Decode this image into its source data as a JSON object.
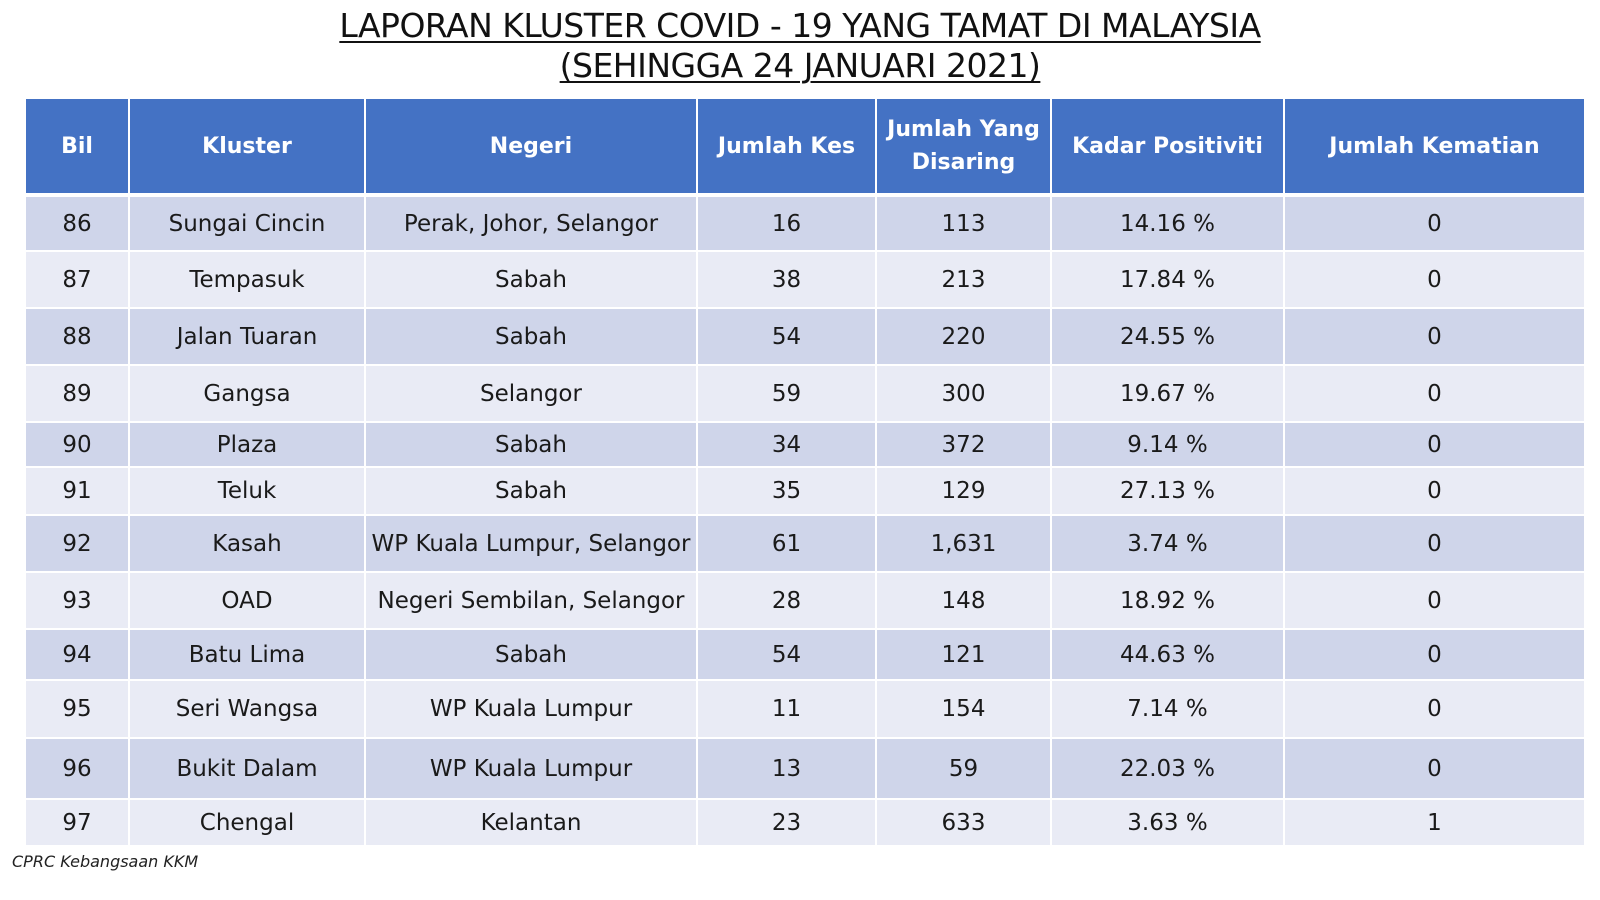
{
  "title": {
    "line1": "LAPORAN KLUSTER COVID - 19 YANG TAMAT DI MALAYSIA",
    "line2": "(SEHINGGA 24 JANUARI 2021)"
  },
  "table": {
    "headers": {
      "bil": "Bil",
      "kluster": "Kluster",
      "negeri": "Negeri",
      "jumlah_kes": "Jumlah Kes",
      "jumlah_disaring": "Jumlah Yang Disaring",
      "kadar_positiviti": "Kadar Positiviti",
      "jumlah_kematian": "Jumlah Kematian"
    },
    "rows": [
      {
        "bil": "86",
        "kluster": "Sungai Cincin",
        "negeri": "Perak, Johor, Selangor",
        "kes": "16",
        "disaring": "113",
        "positiviti": "14.16 %",
        "kematian": "0"
      },
      {
        "bil": "87",
        "kluster": "Tempasuk",
        "negeri": "Sabah",
        "kes": "38",
        "disaring": "213",
        "positiviti": "17.84 %",
        "kematian": "0"
      },
      {
        "bil": "88",
        "kluster": "Jalan Tuaran",
        "negeri": "Sabah",
        "kes": "54",
        "disaring": "220",
        "positiviti": "24.55 %",
        "kematian": "0"
      },
      {
        "bil": "89",
        "kluster": "Gangsa",
        "negeri": "Selangor",
        "kes": "59",
        "disaring": "300",
        "positiviti": "19.67 %",
        "kematian": "0"
      },
      {
        "bil": "90",
        "kluster": "Plaza",
        "negeri": "Sabah",
        "kes": "34",
        "disaring": "372",
        "positiviti": "9.14 %",
        "kematian": "0"
      },
      {
        "bil": "91",
        "kluster": "Teluk",
        "negeri": "Sabah",
        "kes": "35",
        "disaring": "129",
        "positiviti": "27.13 %",
        "kematian": "0"
      },
      {
        "bil": "92",
        "kluster": "Kasah",
        "negeri": "WP Kuala Lumpur, Selangor",
        "kes": "61",
        "disaring": "1,631",
        "positiviti": "3.74 %",
        "kematian": "0"
      },
      {
        "bil": "93",
        "kluster": "OAD",
        "negeri": "Negeri Sembilan, Selangor",
        "kes": "28",
        "disaring": "148",
        "positiviti": "18.92 %",
        "kematian": "0"
      },
      {
        "bil": "94",
        "kluster": "Batu Lima",
        "negeri": "Sabah",
        "kes": "54",
        "disaring": "121",
        "positiviti": "44.63 %",
        "kematian": "0"
      },
      {
        "bil": "95",
        "kluster": "Seri Wangsa",
        "negeri": "WP Kuala Lumpur",
        "kes": "11",
        "disaring": "154",
        "positiviti": "7.14 %",
        "kematian": "0"
      },
      {
        "bil": "96",
        "kluster": "Bukit Dalam",
        "negeri": "WP Kuala Lumpur",
        "kes": "13",
        "disaring": "59",
        "positiviti": "22.03 %",
        "kematian": "0"
      },
      {
        "bil": "97",
        "kluster": "Chengal",
        "negeri": "Kelantan",
        "kes": "23",
        "disaring": "633",
        "positiviti": "3.63 %",
        "kematian": "1"
      }
    ]
  },
  "source": "CPRC Kebangsaan KKM",
  "colors": {
    "header_bg": "#4472c4",
    "row_odd": "#cfd5ea",
    "row_even": "#e9ebf5"
  }
}
